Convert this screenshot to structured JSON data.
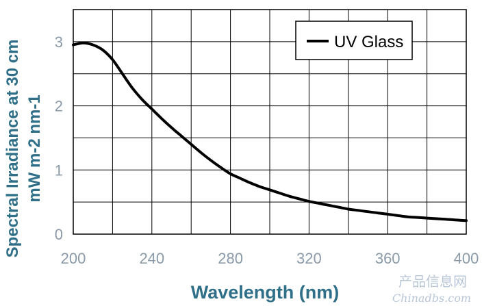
{
  "chart_data": {
    "type": "line",
    "xlabel": "Wavelength (nm)",
    "ylabel_line1": "Spectral Irradiance at 30 cm",
    "ylabel_line2": "mW m-2 nm-1",
    "xlim": [
      200,
      400
    ],
    "ylim": [
      0,
      3.5
    ],
    "xticks": [
      "200",
      "240",
      "280",
      "320",
      "360",
      "400"
    ],
    "yticks": [
      "0",
      "1",
      "2",
      "3"
    ],
    "grid": true,
    "legend_position": "top-right",
    "series": [
      {
        "name": "UV Glass",
        "color": "#000000",
        "x": [
          200,
          205,
          210,
          215,
          220,
          225,
          230,
          235,
          240,
          245,
          250,
          255,
          260,
          265,
          270,
          275,
          280,
          285,
          290,
          295,
          300,
          305,
          310,
          315,
          320,
          325,
          330,
          335,
          340,
          345,
          350,
          355,
          360,
          365,
          370,
          375,
          380,
          385,
          390,
          395,
          400
        ],
        "y": [
          2.95,
          2.98,
          2.95,
          2.87,
          2.72,
          2.5,
          2.28,
          2.1,
          1.95,
          1.8,
          1.66,
          1.53,
          1.4,
          1.27,
          1.15,
          1.04,
          0.94,
          0.87,
          0.8,
          0.74,
          0.69,
          0.64,
          0.59,
          0.55,
          0.51,
          0.48,
          0.45,
          0.42,
          0.39,
          0.37,
          0.35,
          0.33,
          0.31,
          0.29,
          0.27,
          0.26,
          0.25,
          0.24,
          0.23,
          0.22,
          0.21
        ]
      }
    ]
  },
  "watermark": {
    "line1": "产品信息网",
    "line2": "Chinadbs.com"
  }
}
